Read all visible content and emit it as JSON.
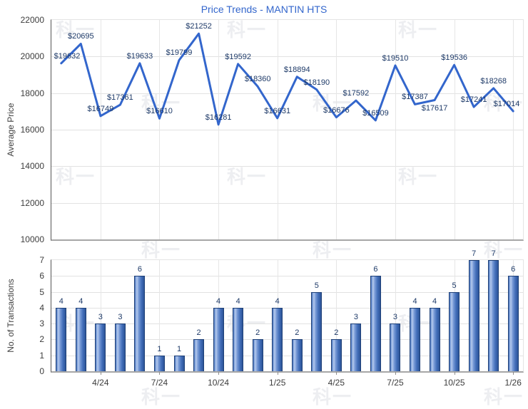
{
  "watermark_text": "科一",
  "colors": {
    "title_blue": "#3366cc",
    "line_blue": "#3366cc",
    "data_label_navy": "#1e3a68",
    "bar_border": "#1d3f77",
    "bar_highlight": "#b6cbee",
    "bar_dark": "#2c5498",
    "grid_gray": "#e2e2e2",
    "axis_gray": "#565656",
    "tick_text": "#3d3d3d"
  },
  "chart_data": [
    {
      "type": "line",
      "title": "Price Trends - MANTIN HTS",
      "ylabel": "Average Price",
      "ylim": [
        10000,
        22000
      ],
      "ytick_interval": 2000,
      "ytick_labels": [
        "22000",
        "20000",
        "18000",
        "16000",
        "14000",
        "12000",
        "10000"
      ],
      "grid": true,
      "legend": "none",
      "values": [
        19632,
        20695,
        16749,
        17361,
        19633,
        16610,
        19799,
        21252,
        16281,
        19592,
        18360,
        16631,
        18894,
        18190,
        16676,
        17592,
        16509,
        19510,
        17387,
        17617,
        19536,
        17241,
        18268,
        17014
      ],
      "point_labels": [
        "$19632",
        "$20695",
        "$16749",
        "$17361",
        "$19633",
        "$16610",
        "$19799",
        "$21252",
        "$16281",
        "$19592",
        "$18360",
        "$16631",
        "$18894",
        "$18190",
        "$16676",
        "$17592",
        "$16509",
        "$19510",
        "$17387",
        "$17617",
        "$19536",
        "$17241",
        "$18268",
        "$17014"
      ],
      "label_below": [
        false,
        false,
        false,
        false,
        false,
        false,
        false,
        false,
        false,
        false,
        false,
        false,
        false,
        false,
        false,
        false,
        false,
        false,
        false,
        true,
        false,
        false,
        false,
        false
      ],
      "xticks": [
        {
          "i": 2,
          "label": "4/24"
        },
        {
          "i": 5,
          "label": "7/24"
        },
        {
          "i": 8,
          "label": "10/24"
        },
        {
          "i": 11,
          "label": "1/25"
        },
        {
          "i": 14,
          "label": "4/25"
        },
        {
          "i": 17,
          "label": "7/25"
        },
        {
          "i": 20,
          "label": "10/25"
        },
        {
          "i": 23,
          "label": "1/26"
        }
      ]
    },
    {
      "type": "bar",
      "ylabel": "No. of Transactions",
      "ylim": [
        0,
        7
      ],
      "ytick_interval": 1,
      "ytick_labels": [
        "7",
        "6",
        "5",
        "4",
        "3",
        "2",
        "1",
        "0"
      ],
      "grid": true,
      "legend": "none",
      "values": [
        4,
        4,
        3,
        3,
        6,
        1,
        1,
        2,
        4,
        4,
        2,
        4,
        2,
        5,
        2,
        3,
        6,
        3,
        4,
        4,
        5,
        7,
        7,
        6
      ],
      "bar_labels": [
        "4",
        "4",
        "3",
        "3",
        "6",
        "1",
        "1",
        "2",
        "4",
        "4",
        "2",
        "4",
        "2",
        "5",
        "2",
        "3",
        "6",
        "3",
        "4",
        "4",
        "5",
        "7",
        "7",
        "6"
      ],
      "xticks": [
        {
          "i": 2,
          "label": "4/24"
        },
        {
          "i": 5,
          "label": "7/24"
        },
        {
          "i": 8,
          "label": "10/24"
        },
        {
          "i": 11,
          "label": "1/25"
        },
        {
          "i": 14,
          "label": "4/25"
        },
        {
          "i": 17,
          "label": "7/25"
        },
        {
          "i": 20,
          "label": "10/25"
        },
        {
          "i": 23,
          "label": "1/26"
        }
      ]
    }
  ]
}
